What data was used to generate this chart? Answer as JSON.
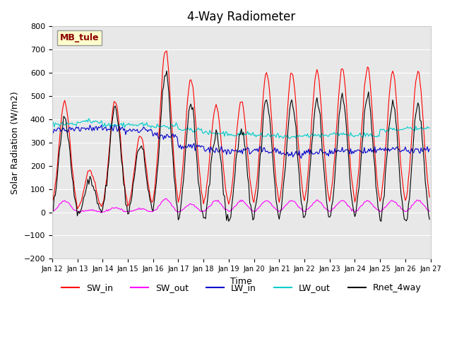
{
  "title": "4-Way Radiometer",
  "xlabel": "Time",
  "ylabel": "Solar Radiation (W/m2)",
  "ylim": [
    -200,
    800
  ],
  "yticks": [
    -200,
    -100,
    0,
    100,
    200,
    300,
    400,
    500,
    600,
    700,
    800
  ],
  "xlim": [
    0,
    15
  ],
  "xtick_labels": [
    "Jan 12",
    "Jan 13",
    "Jan 14",
    "Jan 15",
    "Jan 16",
    "Jan 17",
    "Jan 18",
    "Jan 19",
    "Jan 20",
    "Jan 21",
    "Jan 22",
    "Jan 23",
    "Jan 24",
    "Jan 25",
    "Jan 26",
    "Jan 27"
  ],
  "station_label": "MB_tule",
  "legend_entries": [
    "SW_in",
    "SW_out",
    "LW_in",
    "LW_out",
    "Rnet_4way"
  ],
  "colors": {
    "SW_in": "#ff0000",
    "SW_out": "#ff00ff",
    "LW_in": "#0000cc",
    "LW_out": "#00cccc",
    "Rnet_4way": "#000000"
  },
  "bg_color": "#e8e8e8",
  "title_fontsize": 12,
  "axis_fontsize": 9,
  "legend_fontsize": 9,
  "day_peaks_sw": [
    480,
    180,
    480,
    330,
    700,
    570,
    460,
    480,
    600,
    600,
    610,
    620,
    620,
    605,
    610
  ],
  "sw_out_peaks": [
    50,
    10,
    20,
    15,
    55,
    35,
    50,
    50,
    50,
    50,
    50,
    50,
    50,
    50,
    50
  ],
  "lw_in_base": [
    355,
    360,
    360,
    355,
    330,
    285,
    270,
    265,
    265,
    250,
    255,
    260,
    265,
    270,
    265
  ],
  "lw_out_base": [
    380,
    390,
    375,
    375,
    370,
    355,
    340,
    335,
    330,
    325,
    330,
    335,
    330,
    355,
    360
  ]
}
